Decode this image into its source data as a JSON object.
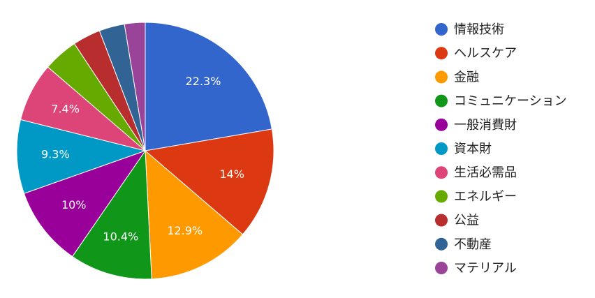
{
  "chart_data": {
    "type": "pie",
    "categories": [
      "情報技術",
      "ヘルスケア",
      "金融",
      "コミュニケーション",
      "一般消費財",
      "資本財",
      "生活必需品",
      "エネルギー",
      "公益",
      "不動産",
      "マテリアル"
    ],
    "values": [
      22.3,
      14,
      12.9,
      10.4,
      10,
      9.3,
      7.4,
      4.4,
      3.5,
      3.2,
      2.6
    ],
    "value_labels": [
      "22.3%",
      "14%",
      "12.9%",
      "10.4%",
      "10%",
      "9.3%",
      "7.4%",
      null,
      null,
      null,
      null
    ],
    "colors": [
      "#3366cc",
      "#dc3912",
      "#ff9900",
      "#109618",
      "#990099",
      "#0099c6",
      "#dd4477",
      "#66aa00",
      "#b82e2e",
      "#316395",
      "#994499"
    ],
    "legend": "right"
  }
}
